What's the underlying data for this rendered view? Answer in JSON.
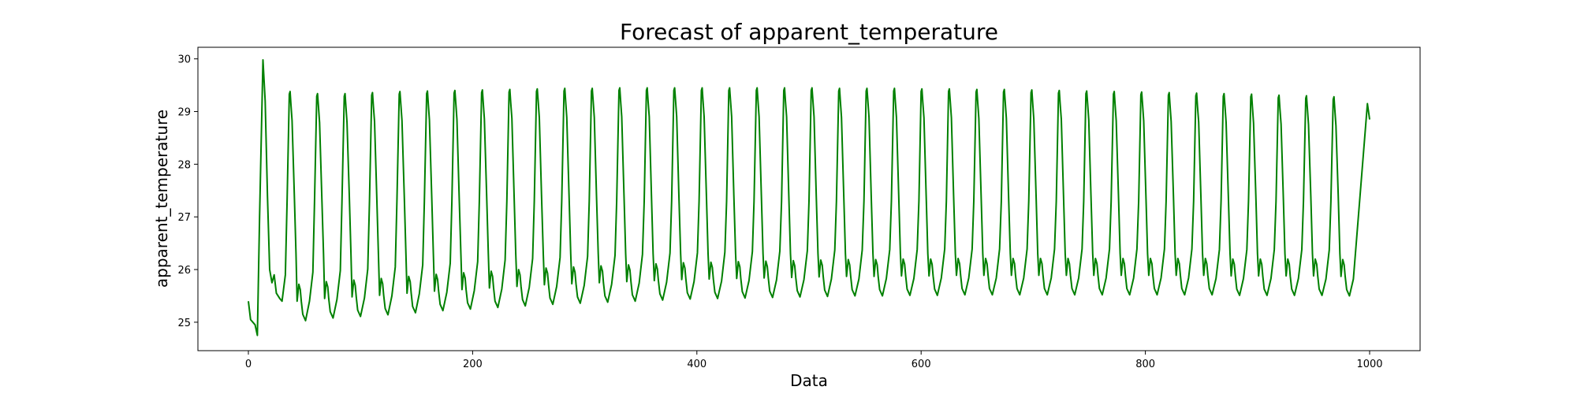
{
  "chart_data": {
    "type": "line",
    "title": "Forecast of apparent_temperature",
    "xlabel": "Data",
    "ylabel": "apparent_temperature",
    "xlim": [
      -45,
      1045
    ],
    "ylim": [
      24.46,
      30.22
    ],
    "xticks": [
      0,
      200,
      400,
      600,
      800,
      1000
    ],
    "yticks": [
      25,
      26,
      27,
      28,
      29,
      30
    ],
    "grid": false,
    "legend": "none",
    "series": [
      {
        "color": "#008000",
        "period": 24.5,
        "first_segment": [
          [
            0,
            25.4
          ],
          [
            2,
            25.05
          ],
          [
            6,
            24.95
          ],
          [
            8,
            24.75
          ],
          [
            10,
            27.0
          ],
          [
            13,
            29.98
          ],
          [
            15,
            29.2
          ],
          [
            17,
            27.4
          ],
          [
            19,
            26.0
          ],
          [
            21,
            25.75
          ],
          [
            23,
            25.9
          ],
          [
            25,
            25.55
          ],
          [
            28,
            25.45
          ],
          [
            30,
            25.4
          ]
        ],
        "peaks": [
          29.98,
          29.38,
          29.34,
          29.34,
          29.36,
          29.38,
          29.39,
          29.4,
          29.41,
          29.42,
          29.43,
          29.44,
          29.44,
          29.45,
          29.45,
          29.45,
          29.45,
          29.45,
          29.45,
          29.45,
          29.45,
          29.44,
          29.44,
          29.44,
          29.43,
          29.43,
          29.42,
          29.42,
          29.41,
          29.4,
          29.39,
          29.38,
          29.37,
          29.36,
          29.35,
          29.34,
          29.33,
          29.31,
          29.3,
          29.28,
          29.26,
          29.24,
          29.22,
          29.2
        ],
        "troughs": [
          24.75,
          25.35,
          25.4,
          25.43,
          25.46,
          25.5,
          25.54,
          25.57,
          25.6,
          25.63,
          25.66,
          25.68,
          25.7,
          25.72,
          25.74,
          25.76,
          25.77,
          25.78,
          25.79,
          25.8,
          25.81,
          25.82,
          25.82,
          25.83,
          25.83,
          25.84,
          25.84,
          25.84,
          25.84,
          25.84,
          25.84,
          25.84,
          25.84,
          25.84,
          25.84,
          25.83,
          25.83,
          25.83,
          25.83,
          25.82,
          25.82,
          25.82,
          25.81
        ],
        "end": [
          [
            998,
            29.15
          ],
          [
            1000,
            28.85
          ]
        ]
      }
    ]
  }
}
